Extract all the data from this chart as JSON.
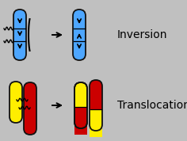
{
  "bg_color": "#c0c0c0",
  "blue": "#4da6ff",
  "yellow": "#ffee00",
  "red": "#cc0000",
  "black": "#000000",
  "outline": "#111111",
  "title_inversion": "Inversion",
  "title_translocation": "Translocation",
  "fig_width": 2.36,
  "fig_height": 1.78,
  "dpi": 100
}
